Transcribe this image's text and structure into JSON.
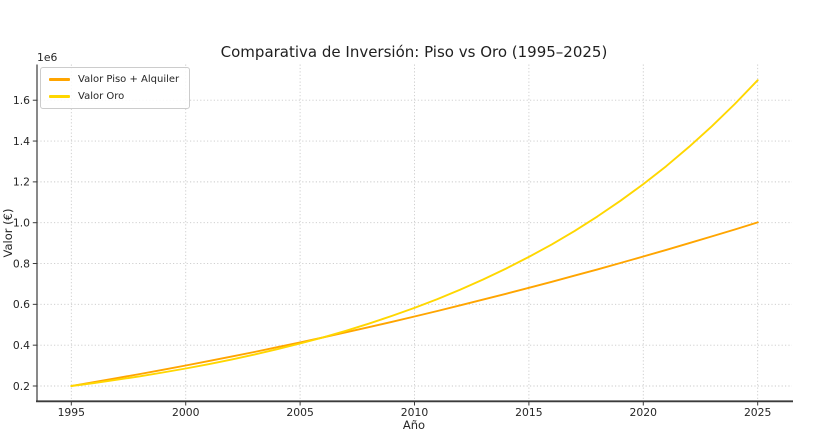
{
  "figure": {
    "title": "Comparativa de Inversión: Piso vs Oro (1995–2025)",
    "y_offset_label": "1e6",
    "xlabel": "Año",
    "ylabel": "Valor (€)",
    "background": "#ffffff"
  },
  "legend": {
    "position": "upper left",
    "entries": [
      {
        "label": "Valor Piso + Alquiler",
        "color": "#FFA500"
      },
      {
        "label": "Valor Oro",
        "color": "#FFD700"
      }
    ]
  },
  "style": {
    "grid_color": "#c9c9c9",
    "spine_color": "#3b3b3b",
    "tick_color": "#3b3b3b",
    "text_color": "#262626",
    "piso_color": "#FFA500",
    "oro_color": "#FFD700"
  },
  "chart_data": {
    "type": "line",
    "title": "Comparativa de Inversión: Piso vs Oro (1995–2025)",
    "xlabel": "Año",
    "ylabel": "Valor (€)",
    "y_multiplier_label": "1e6",
    "grid": true,
    "grid_style": "dotted",
    "legend_position": "upper left",
    "xlim": [
      1993.5,
      2026.5
    ],
    "ylim_1e6": [
      0.125,
      1.775
    ],
    "xticks": [
      1995,
      2000,
      2005,
      2010,
      2015,
      2020,
      2025
    ],
    "yticks_1e6": [
      0.2,
      0.4,
      0.6,
      0.8,
      1.0,
      1.2,
      1.4,
      1.6
    ],
    "x_years": [
      1995,
      1996,
      1997,
      1998,
      1999,
      2000,
      2001,
      2002,
      2003,
      2004,
      2005,
      2006,
      2007,
      2008,
      2009,
      2010,
      2011,
      2012,
      2013,
      2014,
      2015,
      2016,
      2017,
      2018,
      2019,
      2020,
      2021,
      2022,
      2023,
      2024,
      2025
    ],
    "series": [
      {
        "name": "Valor Piso + Alquiler",
        "color": "#FFA500",
        "values_eur": [
          200000,
          219000,
          238500,
          258500,
          279100,
          300200,
          321800,
          344000,
          366700,
          389900,
          413700,
          438000,
          462800,
          488200,
          514100,
          540600,
          567600,
          595100,
          623100,
          651700,
          680800,
          710400,
          740600,
          771300,
          802600,
          834400,
          866700,
          899500,
          932900,
          966800,
          1001300
        ]
      },
      {
        "name": "Valor Oro",
        "color": "#FFD700",
        "values_eur": [
          200000,
          214800,
          230700,
          247700,
          266000,
          285700,
          306800,
          329500,
          353800,
          380000,
          408100,
          438200,
          470600,
          505400,
          542700,
          582800,
          625900,
          672100,
          721800,
          775100,
          832400,
          893900,
          960000,
          1030900,
          1107100,
          1188900,
          1276800,
          1371200,
          1472500,
          1581300,
          1698200
        ]
      }
    ]
  }
}
